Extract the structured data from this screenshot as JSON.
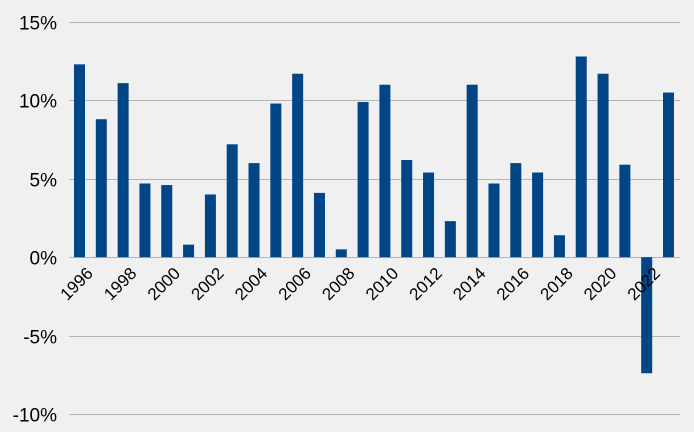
{
  "chart_data": {
    "type": "bar",
    "title": "",
    "xlabel": "",
    "ylabel": "",
    "categories": [
      "1996",
      "1997",
      "1998",
      "1999",
      "2000",
      "2001",
      "2002",
      "2003",
      "2004",
      "2005",
      "2006",
      "2007",
      "2008",
      "2009",
      "2010",
      "2011",
      "2012",
      "2013",
      "2014",
      "2015",
      "2016",
      "2017",
      "2018",
      "2019",
      "2020",
      "2021",
      "2022",
      "2023"
    ],
    "series": [
      {
        "values": [
          12.3,
          8.8,
          11.1,
          4.7,
          4.6,
          0.8,
          4.0,
          7.2,
          6.0,
          9.8,
          11.7,
          4.1,
          0.5,
          9.9,
          11.0,
          6.2,
          5.4,
          2.3,
          11.0,
          4.7,
          6.0,
          5.4,
          1.4,
          12.8,
          11.7,
          5.9,
          -7.4,
          10.5
        ]
      }
    ],
    "ylim": [
      -10,
      15
    ],
    "y_ticks": [
      -10,
      -5,
      0,
      5,
      10,
      15
    ],
    "y_tick_labels": [
      "-10%",
      "-5%",
      "0%",
      "5%",
      "10%",
      "15%"
    ],
    "x_tick_labels": [
      "1996",
      "1998",
      "2000",
      "2002",
      "2004",
      "2006",
      "2008",
      "2010",
      "2012",
      "2014",
      "2016",
      "2018",
      "2020",
      "2022"
    ],
    "grid": "horizontal",
    "colors": {
      "bar": "#004586",
      "grid": "#b3b3b3",
      "background": "#f0f0f0",
      "text": "#000000"
    }
  }
}
